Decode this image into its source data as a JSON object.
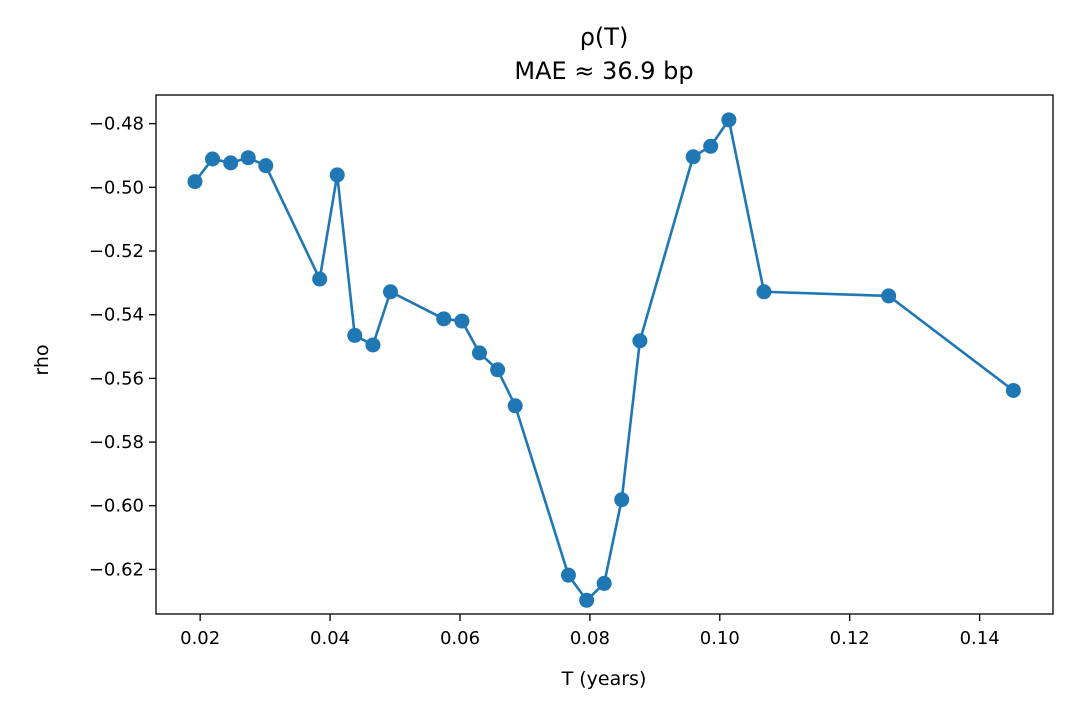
{
  "chart_data": {
    "type": "line",
    "title": "ρ(T)",
    "subtitle": "MAE ≈ 36.9 bp",
    "xlabel": "T (years)",
    "ylabel": "rho",
    "xlim": [
      0.0132,
      0.1513
    ],
    "ylim": [
      -0.634,
      -0.471
    ],
    "xticks": [
      0.02,
      0.04,
      0.06,
      0.08,
      0.1,
      0.12,
      0.14
    ],
    "xtick_labels": [
      "0.02",
      "0.04",
      "0.06",
      "0.08",
      "0.10",
      "0.12",
      "0.14"
    ],
    "yticks": [
      -0.48,
      -0.5,
      -0.52,
      -0.54,
      -0.56,
      -0.58,
      -0.6,
      -0.62
    ],
    "ytick_labels": [
      "−0.48",
      "−0.50",
      "−0.52",
      "−0.54",
      "−0.56",
      "−0.58",
      "−0.60",
      "−0.62"
    ],
    "grid": false,
    "color": "#1f77b4",
    "series": [
      {
        "x": [
          0.0192,
          0.0219,
          0.0247,
          0.0274,
          0.0301,
          0.0384,
          0.0411,
          0.0438,
          0.0466,
          0.0493,
          0.0575,
          0.0603,
          0.063,
          0.0658,
          0.0685,
          0.0767,
          0.0795,
          0.0822,
          0.0849,
          0.0877,
          0.0959,
          0.0986,
          0.1014,
          0.1068,
          0.126,
          0.1452
        ],
        "y": [
          -0.4982,
          -0.4911,
          -0.4923,
          -0.4907,
          -0.4932,
          -0.5288,
          -0.4961,
          -0.5465,
          -0.5495,
          -0.5328,
          -0.5413,
          -0.542,
          -0.552,
          -0.5573,
          -0.5686,
          -0.6218,
          -0.6297,
          -0.6244,
          -0.5981,
          -0.5482,
          -0.4904,
          -0.4871,
          -0.4788,
          -0.5328,
          -0.5341,
          -0.5638
        ]
      }
    ]
  }
}
